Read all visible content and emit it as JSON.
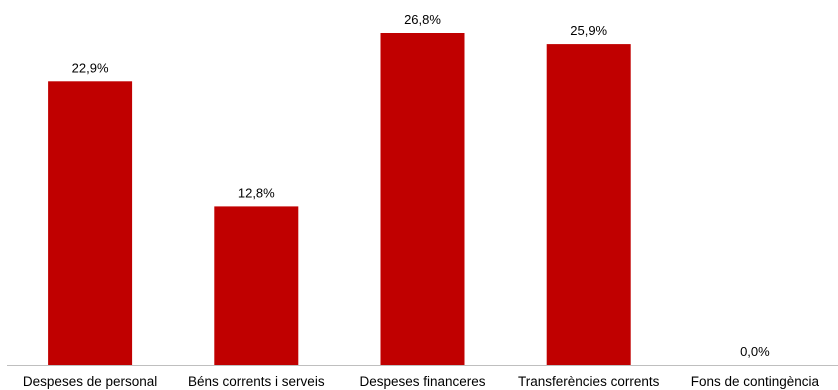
{
  "chart_data": {
    "type": "bar",
    "categories": [
      "Despeses de personal",
      "Béns corrents i serveis",
      "Despeses financeres",
      "Transferències corrents",
      "Fons de contingència"
    ],
    "values": [
      22.9,
      12.8,
      26.8,
      25.9,
      0.0
    ],
    "value_labels": [
      "22,9%",
      "12,8%",
      "26,8%",
      "25,9%",
      "0,0%"
    ],
    "title": "",
    "xlabel": "",
    "ylabel": "",
    "ylim": [
      0,
      30
    ],
    "grid": false,
    "legend": "none",
    "bar_color": "#C00000",
    "axis_color": "#BFBFBF"
  }
}
